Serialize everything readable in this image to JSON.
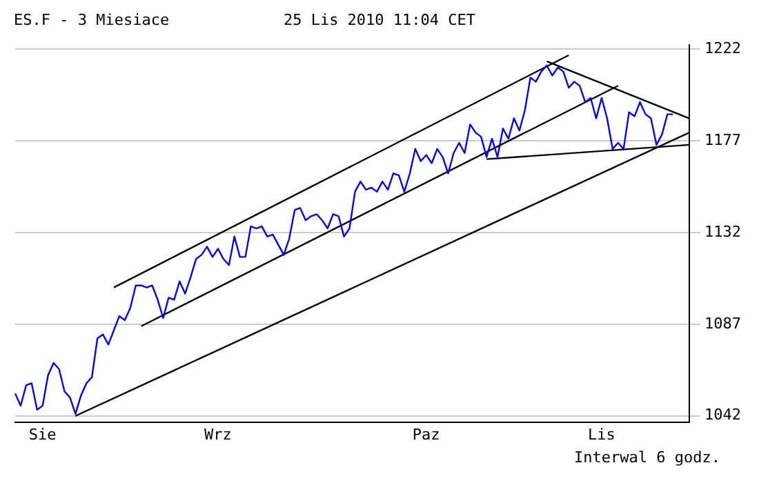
{
  "chart_data": {
    "type": "line",
    "title": "ES.F - 3 Miesiace",
    "subtitle": "25 Lis 2010 11:04 CET",
    "annotations": [
      "Interwal 6 godz."
    ],
    "categories": [
      null,
      null,
      null,
      null,
      null,
      "Sie",
      null,
      null,
      null,
      null,
      null,
      null,
      null,
      null,
      null,
      null,
      null,
      null,
      null,
      null,
      null,
      null,
      null,
      null,
      null,
      null,
      null,
      null,
      null,
      null,
      null,
      null,
      null,
      null,
      null,
      null,
      null,
      "Wrz",
      null,
      null,
      null,
      null,
      null,
      null,
      null,
      null,
      null,
      null,
      null,
      null,
      null,
      null,
      null,
      null,
      null,
      null,
      null,
      null,
      null,
      null,
      null,
      null,
      null,
      null,
      null,
      null,
      null,
      null,
      null,
      null,
      null,
      null,
      null,
      null,
      null,
      "Paz",
      null,
      null,
      null,
      null,
      null,
      null,
      null,
      null,
      null,
      null,
      null,
      null,
      null,
      null,
      null,
      null,
      null,
      null,
      null,
      null,
      null,
      null,
      null,
      null,
      null,
      null,
      null,
      null,
      null,
      null,
      null,
      "Lis",
      null,
      null,
      null,
      null,
      null,
      null,
      null,
      null,
      null,
      null,
      null,
      null,
      null,
      null,
      null,
      null
    ],
    "ylim": [
      1039,
      1224
    ],
    "yticks": [
      1042,
      1087,
      1132,
      1177,
      1222
    ],
    "grid": "y",
    "legend": false,
    "marker": "none",
    "line_style": "solid",
    "series": [
      {
        "color": "#0000ff",
        "values": [
          1053,
          1047,
          1057,
          1058,
          1045,
          1047,
          1062,
          1068,
          1065,
          1054,
          1051,
          1043,
          1052,
          1058,
          1061,
          1080,
          1082,
          1077,
          1084,
          1091,
          1089,
          1095,
          1106,
          1106,
          1105,
          1106,
          1099,
          1090,
          1100,
          1099,
          1108,
          1102,
          1110,
          1119,
          1121,
          1125,
          1120,
          1124,
          1119,
          1116,
          1130,
          1120,
          1120,
          1135,
          1134,
          1135,
          1130,
          1131,
          1126,
          1121,
          1129,
          1143,
          1144,
          1138,
          1140,
          1141,
          1138,
          1134,
          1141,
          1140,
          1130,
          1134,
          1152,
          1157,
          1153,
          1154,
          1152,
          1157,
          1153,
          1161,
          1160,
          1152,
          1161,
          1173,
          1167,
          1170,
          1166,
          1173,
          1169,
          1161,
          1171,
          1176,
          1171,
          1185,
          1181,
          1179,
          1169,
          1178,
          1169,
          1183,
          1178,
          1188,
          1182,
          1192,
          1208,
          1206,
          1211,
          1214,
          1209,
          1213,
          1211,
          1203,
          1206,
          1204,
          1196,
          1198,
          1188,
          1198,
          1188,
          1173,
          1176,
          1173,
          1191,
          1189,
          1196,
          1190,
          1188,
          1175,
          1180,
          1190,
          1190,
          null,
          null,
          null
        ]
      },
      {
        "type": "line",
        "color": "#000000",
        "values": [
          null,
          null,
          null,
          null,
          null,
          null,
          null,
          null,
          null,
          null,
          null,
          null,
          null,
          null,
          null,
          null,
          null,
          null,
          1105,
          null,
          null,
          null,
          null,
          null,
          null,
          null,
          null,
          null,
          null,
          null,
          null,
          null,
          null,
          null,
          null,
          null,
          null,
          null,
          null,
          null,
          null,
          null,
          null,
          null,
          null,
          null,
          null,
          null,
          null,
          null,
          null,
          null,
          null,
          null,
          null,
          null,
          null,
          null,
          null,
          null,
          null,
          null,
          null,
          null,
          null,
          null,
          null,
          null,
          null,
          null,
          null,
          null,
          null,
          null,
          null,
          null,
          null,
          null,
          null,
          null,
          null,
          null,
          null,
          null,
          null,
          null,
          null,
          null,
          null,
          null,
          null,
          null,
          null,
          null,
          null,
          null,
          null,
          null,
          null,
          null,
          null,
          1219,
          null,
          null,
          null,
          null,
          null,
          null,
          null,
          null,
          null,
          null,
          null,
          null,
          null,
          null,
          null,
          null,
          null,
          null,
          null,
          null,
          null,
          null
        ]
      },
      {
        "type": "line",
        "color": "#000000",
        "values": [
          null,
          null,
          null,
          null,
          null,
          null,
          null,
          null,
          null,
          null,
          null,
          null,
          null,
          null,
          null,
          null,
          null,
          null,
          null,
          null,
          null,
          null,
          null,
          1086,
          null,
          null,
          null,
          null,
          null,
          null,
          null,
          null,
          null,
          null,
          null,
          null,
          null,
          null,
          null,
          null,
          null,
          null,
          null,
          null,
          null,
          null,
          null,
          null,
          null,
          null,
          null,
          null,
          null,
          null,
          null,
          null,
          null,
          null,
          null,
          null,
          null,
          null,
          null,
          null,
          null,
          null,
          null,
          null,
          null,
          null,
          null,
          null,
          null,
          null,
          null,
          null,
          null,
          null,
          null,
          null,
          null,
          null,
          null,
          null,
          null,
          null,
          null,
          null,
          null,
          null,
          null,
          null,
          null,
          null,
          null,
          null,
          null,
          null,
          null,
          null,
          null,
          null,
          null,
          null,
          null,
          null,
          null,
          null,
          null,
          null,
          1204,
          null,
          null,
          null,
          null,
          null,
          null,
          null,
          null,
          null,
          null,
          null,
          null,
          null
        ]
      },
      {
        "type": "line",
        "color": "#000000",
        "values": [
          null,
          null,
          null,
          null,
          null,
          null,
          null,
          null,
          null,
          null,
          null,
          1042,
          null,
          null,
          null,
          null,
          null,
          null,
          null,
          null,
          null,
          null,
          null,
          null,
          null,
          null,
          null,
          null,
          null,
          null,
          null,
          null,
          null,
          null,
          null,
          null,
          null,
          null,
          null,
          null,
          null,
          null,
          null,
          null,
          null,
          null,
          null,
          null,
          null,
          null,
          null,
          null,
          null,
          null,
          null,
          null,
          null,
          null,
          null,
          null,
          null,
          null,
          null,
          null,
          null,
          null,
          null,
          null,
          null,
          null,
          null,
          null,
          null,
          null,
          null,
          null,
          null,
          null,
          null,
          null,
          null,
          null,
          null,
          null,
          null,
          null,
          null,
          null,
          null,
          null,
          null,
          null,
          null,
          null,
          null,
          null,
          null,
          null,
          null,
          null,
          null,
          null,
          null,
          null,
          null,
          null,
          null,
          null,
          null,
          null,
          null,
          null,
          null,
          null,
          null,
          null,
          null,
          null,
          null,
          null,
          null,
          null,
          null,
          1181
        ]
      },
      {
        "type": "line",
        "color": "#000000",
        "values": [
          null,
          null,
          null,
          null,
          null,
          null,
          null,
          null,
          null,
          null,
          null,
          null,
          null,
          null,
          null,
          null,
          null,
          null,
          null,
          null,
          null,
          null,
          null,
          null,
          null,
          null,
          null,
          null,
          null,
          null,
          null,
          null,
          null,
          null,
          null,
          null,
          null,
          null,
          null,
          null,
          null,
          null,
          null,
          null,
          null,
          null,
          null,
          null,
          null,
          null,
          null,
          null,
          null,
          null,
          null,
          null,
          null,
          null,
          null,
          null,
          null,
          null,
          null,
          null,
          null,
          null,
          null,
          null,
          null,
          null,
          null,
          null,
          null,
          null,
          null,
          null,
          null,
          null,
          null,
          null,
          null,
          null,
          null,
          null,
          null,
          null,
          null,
          null,
          null,
          null,
          null,
          null,
          null,
          null,
          null,
          null,
          null,
          1216,
          null,
          null,
          null,
          null,
          null,
          null,
          null,
          null,
          null,
          null,
          null,
          null,
          null,
          null,
          null,
          null,
          null,
          null,
          null,
          null,
          null,
          null,
          null,
          null,
          null,
          1188
        ]
      },
      {
        "type": "line",
        "color": "#000000",
        "values": [
          null,
          null,
          null,
          null,
          null,
          null,
          null,
          null,
          null,
          null,
          null,
          null,
          null,
          null,
          null,
          null,
          null,
          null,
          null,
          null,
          null,
          null,
          null,
          null,
          null,
          null,
          null,
          null,
          null,
          null,
          null,
          null,
          null,
          null,
          null,
          null,
          null,
          null,
          null,
          null,
          null,
          null,
          null,
          null,
          null,
          null,
          null,
          null,
          null,
          null,
          null,
          null,
          null,
          null,
          null,
          null,
          null,
          null,
          null,
          null,
          null,
          null,
          null,
          null,
          null,
          null,
          null,
          null,
          null,
          null,
          null,
          null,
          null,
          null,
          null,
          null,
          null,
          null,
          null,
          null,
          null,
          null,
          null,
          null,
          null,
          null,
          1168,
          null,
          null,
          null,
          null,
          null,
          null,
          null,
          null,
          null,
          null,
          null,
          null,
          null,
          null,
          null,
          null,
          null,
          null,
          null,
          null,
          null,
          null,
          null,
          null,
          null,
          null,
          null,
          null,
          null,
          null,
          null,
          null,
          null,
          null,
          null,
          null,
          1175
        ]
      }
    ]
  }
}
